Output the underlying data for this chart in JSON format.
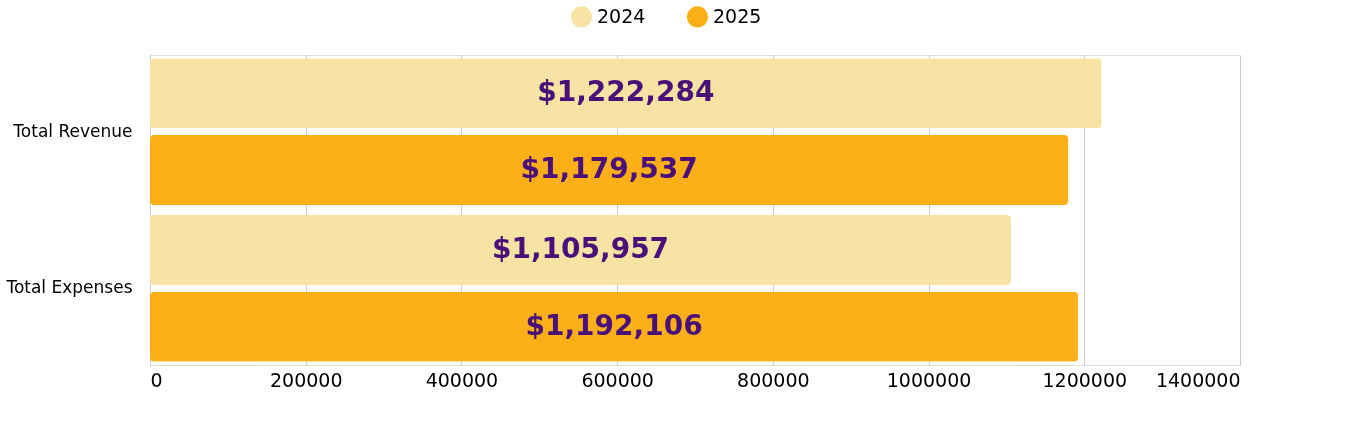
{
  "chart_data": {
    "type": "bar",
    "orientation": "horizontal",
    "categories": [
      "Total Revenue",
      "Total Expenses"
    ],
    "series": [
      {
        "name": "2024",
        "color": "#f7e3a3",
        "values": [
          1222284,
          1105957
        ],
        "value_labels": [
          "$1,222,284",
          "$1,105,957"
        ]
      },
      {
        "name": "2025",
        "color": "#fcaf17",
        "values": [
          1179537,
          1192106
        ],
        "value_labels": [
          "$1,179,537",
          "$1,192,106"
        ]
      }
    ],
    "xlim": [
      0,
      1400000
    ],
    "xticks": [
      0,
      200000,
      400000,
      600000,
      800000,
      1000000,
      1200000,
      1400000
    ],
    "grid": "x",
    "legend": "top"
  }
}
